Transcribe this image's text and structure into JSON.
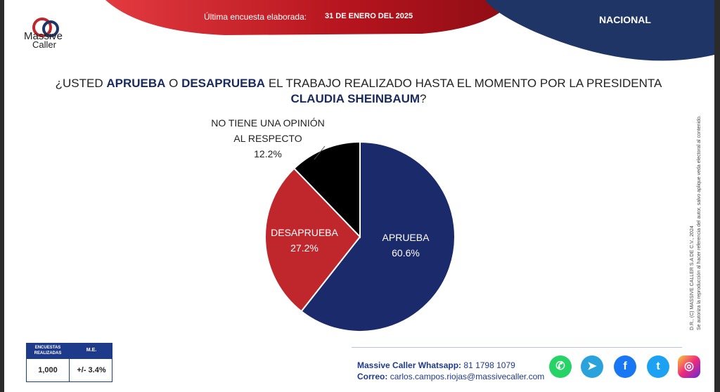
{
  "header": {
    "logo_text_1": "Massive",
    "logo_text_2": "Caller",
    "logo_sub": "",
    "survey_label": "Última encuesta elaborada:",
    "survey_date": "31 DE ENERO DEL 2025",
    "scope": "NACIONAL",
    "colors": {
      "red": "#b5141e",
      "navy": "#1e3566"
    }
  },
  "question": {
    "part1": "¿USTED ",
    "bold1": "APRUEBA",
    "part2": " O ",
    "bold2": "DESAPRUEBA",
    "part3": " EL TRABAJO REALIZADO HASTA EL MOMENTO POR LA PRESIDENTA ",
    "bold3": "CLAUDIA SHEINBAUM",
    "part4": "?"
  },
  "chart_data": {
    "type": "pie",
    "slices": [
      {
        "label": "APRUEBA",
        "value": 60.6,
        "display": "60.6%",
        "color": "#1b2a6b"
      },
      {
        "label": "DESAPRUEBA",
        "value": 27.2,
        "display": "27.2%",
        "color": "#c0272d"
      },
      {
        "label": "NO TIENE UNA OPINIÓN AL RESPECTO",
        "value": 12.2,
        "display": "12.2%",
        "color": "#000000"
      }
    ],
    "label_lines": {
      "no_opinion_line1": "NO TIENE UNA OPINIÓN",
      "no_opinion_line2": "AL RESPECTO"
    }
  },
  "side_note": {
    "line1": "D.R., (C) MASSIVE CALLER S.A DE C.V., 2024",
    "line2": "Se autoriza la reproducción al hacer referencia del autor, salvo aplique veda electoral al contenido."
  },
  "stats_box": {
    "col1_header": "ENCUESTAS REALIZADAS",
    "col2_header": "M.E.",
    "col1_value": "1,000",
    "col2_value": "+/- 3.4%"
  },
  "contact": {
    "whatsapp_label": "Massive Caller Whatsapp:",
    "whatsapp_value": "81 1798 1079",
    "email_label": "Correo:",
    "email_value": "carlos.campos.riojas@massivecaller.com"
  },
  "social_icons": [
    {
      "name": "whatsapp-icon",
      "color": "#25d366"
    },
    {
      "name": "telegram-icon",
      "color": "#2aa3dc"
    },
    {
      "name": "facebook-icon",
      "color": "#1877f2"
    },
    {
      "name": "twitter-icon",
      "color": "#1da1f2"
    },
    {
      "name": "instagram-icon",
      "color": "#d62976"
    }
  ]
}
